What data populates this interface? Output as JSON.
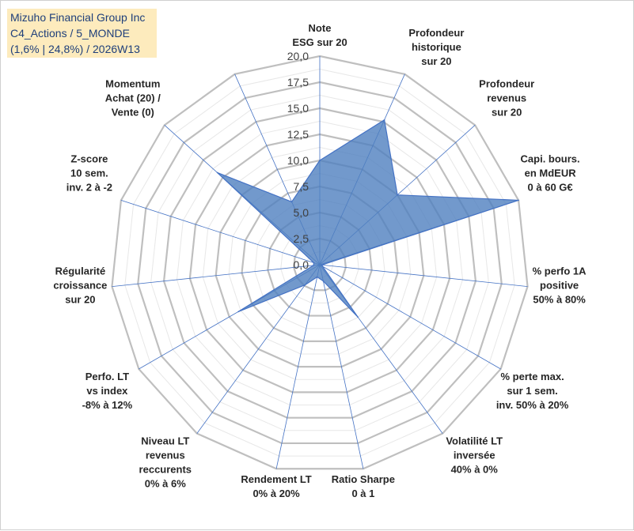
{
  "title_box": {
    "line1": "Mizuho Financial Group Inc",
    "line2": "C4_Actions / 5_MONDE",
    "line3": "(1,6% | 24,8%) / 2026W13"
  },
  "colors": {
    "fill": "#4f7fbf",
    "fill_opacity": "0.8",
    "series_line": "#4472c4",
    "grid_major": "#bfbfbf",
    "grid_minor": "#e7e7e7",
    "spoke": "#4472c4"
  },
  "chart_data": {
    "type": "radar",
    "title": "",
    "scale": {
      "min": 0,
      "max": 20,
      "major_step": 2.5,
      "minor_step": 1.25
    },
    "tick_labels": [
      "0,0",
      "2,5",
      "5,0",
      "7,5",
      "10,0",
      "12,5",
      "15,0",
      "17,5",
      "20,0"
    ],
    "axes": [
      {
        "label": [
          "Note",
          "ESG sur 20"
        ],
        "value": 10.0
      },
      {
        "label": [
          "Profondeur",
          "historique",
          "sur 20"
        ],
        "value": 15.2
      },
      {
        "label": [
          "Profondeur",
          "revenus",
          "sur 20"
        ],
        "value": 10.0
      },
      {
        "label": [
          "Capi. bours.",
          "en MdEUR",
          "0 à 60 G€"
        ],
        "value": 20.0
      },
      {
        "label": [
          "% perfo 1A",
          "positive",
          "50% à 80%"
        ],
        "value": 0.2
      },
      {
        "label": [
          "% perte max.",
          "sur 1 sem.",
          "inv. 50% à 20%"
        ],
        "value": 0.3
      },
      {
        "label": [
          "Volatilité LT",
          "inversée",
          "40% à 0%"
        ],
        "value": 6.2
      },
      {
        "label": [
          "Ratio Sharpe",
          "0 à 1"
        ],
        "value": 1.6
      },
      {
        "label": [
          "Rendement LT",
          "0% à 20%"
        ],
        "value": 1.2
      },
      {
        "label": [
          "Niveau LT",
          "revenus",
          "reccurents",
          "0% à 6%"
        ],
        "value": 2.4
      },
      {
        "label": [
          "Perfo. LT",
          "vs index",
          "-8% à 12%"
        ],
        "value": 9.0
      },
      {
        "label": [
          "Régularité",
          "croissance",
          "sur 20"
        ],
        "value": 0.6
      },
      {
        "label": [
          "Z-score",
          "10 sem.",
          "inv. 2 à -2"
        ],
        "value": 0.6
      },
      {
        "label": [
          "Momentum",
          "Achat (20) /",
          "Vente (0)"
        ],
        "value": 13.2
      },
      {
        "label": [],
        "value": 6.6
      }
    ]
  }
}
